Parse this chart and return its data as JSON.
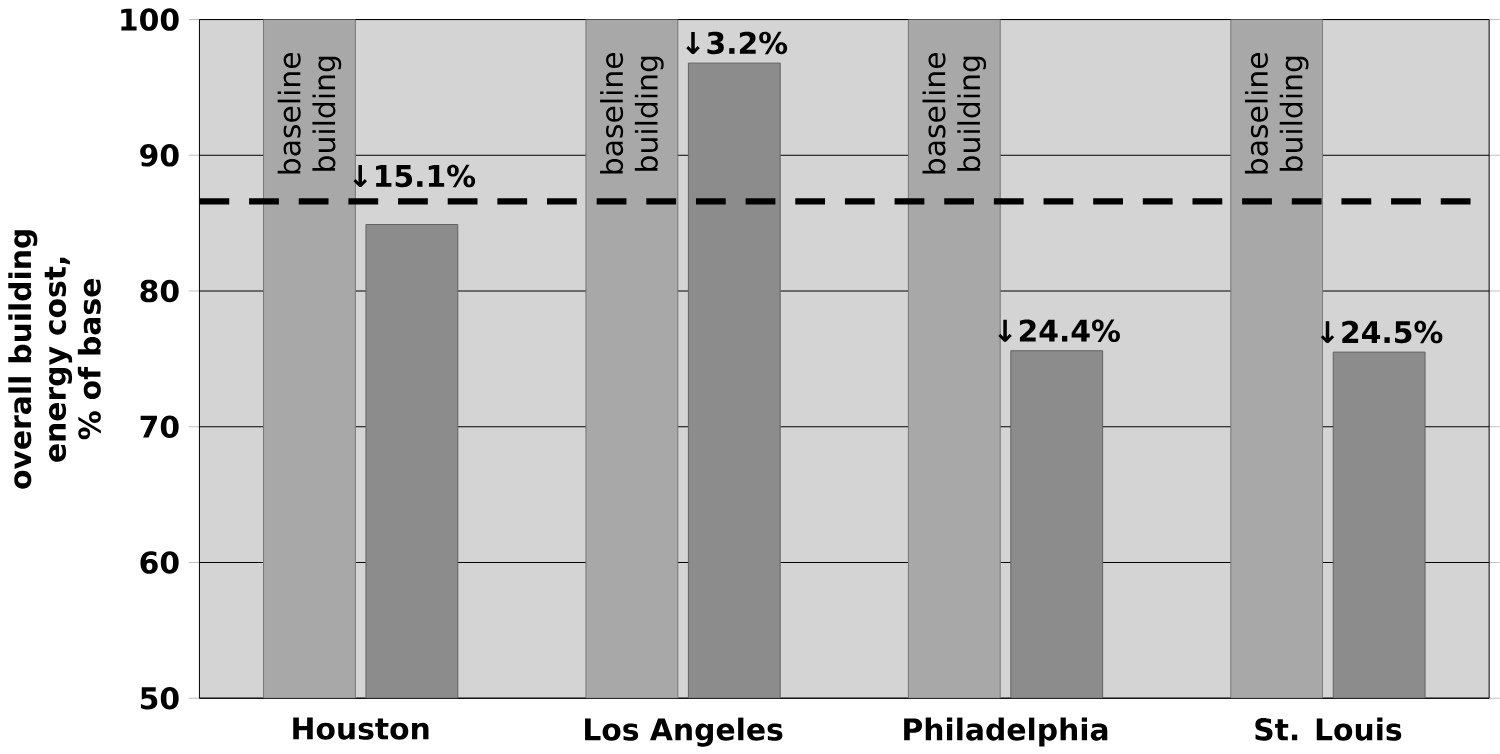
{
  "chart_data": {
    "type": "bar",
    "ylabel": "overall building energy cost, % of base",
    "categories": [
      "Houston",
      "Los Angeles",
      "Philadelphia",
      "St. Louis"
    ],
    "series": [
      {
        "color": "#a8a8a8",
        "values": [
          100,
          100,
          100,
          100
        ],
        "value_labels": [
          "baseline building",
          "baseline building",
          "baseline building",
          "baseline building"
        ]
      },
      {
        "color": "#8c8c8c",
        "values": [
          84.9,
          96.8,
          75.6,
          75.5
        ]
      }
    ],
    "annotations": [
      {
        "text": "↓15.1%",
        "x": "Houston",
        "y": 84.9
      },
      {
        "text": "↓3.2%",
        "x": "Los Angeles",
        "y": 96.8
      },
      {
        "text": "↓24.4%",
        "x": "Philadelphia",
        "y": 75.6
      },
      {
        "text": "↓24.5%",
        "x": "St. Louis",
        "y": 75.5
      }
    ],
    "ylim": [
      50,
      100
    ],
    "yticks": [
      50,
      60,
      70,
      80,
      90,
      100
    ],
    "grid": "y",
    "ref_lines": [
      {
        "axis": "y",
        "value": 86.6,
        "line_style": "dashed",
        "color": "#000000"
      }
    ]
  }
}
